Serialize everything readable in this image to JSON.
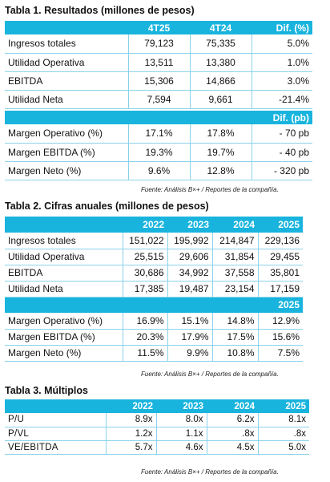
{
  "table1": {
    "title": "Tabla 1. Resultados (millones de pesos)",
    "header": [
      "",
      "4T25",
      "4T24",
      "Dif. (%)"
    ],
    "rows": [
      [
        "Ingresos totales",
        "79,123",
        "75,335",
        "5.0%"
      ],
      [
        "Utilidad Operativa",
        "13,511",
        "13,380",
        "1.0%"
      ],
      [
        "EBITDA",
        "15,306",
        "14,866",
        "3.0%"
      ],
      [
        "Utilidad Neta",
        "7,594",
        "9,661",
        "-21.4%"
      ]
    ],
    "header2": [
      "",
      "",
      "",
      "Dif. (pb)"
    ],
    "rows2": [
      [
        "Margen Operativo (%)",
        "17.1%",
        "17.8%",
        "- 70 pb"
      ],
      [
        "Margen EBITDA (%)",
        "19.3%",
        "19.7%",
        "- 40 pb"
      ],
      [
        "Margen Neto (%)",
        "9.6%",
        "12.8%",
        "- 320 pb"
      ]
    ],
    "source": "Fuente: Análisis B×+ / Reportes de la compañía."
  },
  "table2": {
    "title": "Tabla 2. Cifras anuales (millones de pesos)",
    "header": [
      "",
      "2022",
      "2023",
      "2024",
      "2025"
    ],
    "rows": [
      [
        "Ingresos totales",
        "151,022",
        "195,992",
        "214,847",
        "229,136"
      ],
      [
        "Utilidad Operativa",
        "25,515",
        "29,606",
        "31,854",
        "29,455"
      ],
      [
        "EBITDA",
        "30,686",
        "34,992",
        "37,558",
        "35,801"
      ],
      [
        "Utilidad Neta",
        "17,385",
        "19,487",
        "23,154",
        "17,159"
      ]
    ],
    "header2": [
      "",
      "",
      "",
      "",
      "2025"
    ],
    "rows2": [
      [
        "Margen Operativo (%)",
        "16.9%",
        "15.1%",
        "14.8%",
        "12.9%"
      ],
      [
        "Margen EBITDA (%)",
        "20.3%",
        "17.9%",
        "17.5%",
        "15.6%"
      ],
      [
        "Margen Neto (%)",
        "11.5%",
        "9.9%",
        "10.8%",
        "7.5%"
      ]
    ],
    "source": "Fuente: Análisis B×+ / Reportes de la compañía."
  },
  "table3": {
    "title": "Tabla 3. Múltiplos",
    "header": [
      "",
      "2022",
      "2023",
      "2024",
      "2025"
    ],
    "rows": [
      [
        "P/U",
        "8.9x",
        "8.0x",
        "6.2x",
        "8.1x"
      ],
      [
        "P/VL",
        "1.2x",
        "1.1x",
        ".8x",
        ".8x"
      ],
      [
        "VE/EBITDA",
        "5.7x",
        "4.6x",
        "4.5x",
        "5.0x"
      ]
    ],
    "source": "Fuente: Análisis B×+ / Reportes de la compañía."
  },
  "colors": {
    "header_bg": "#19b4de",
    "grid_line": "#8ad2ec"
  }
}
